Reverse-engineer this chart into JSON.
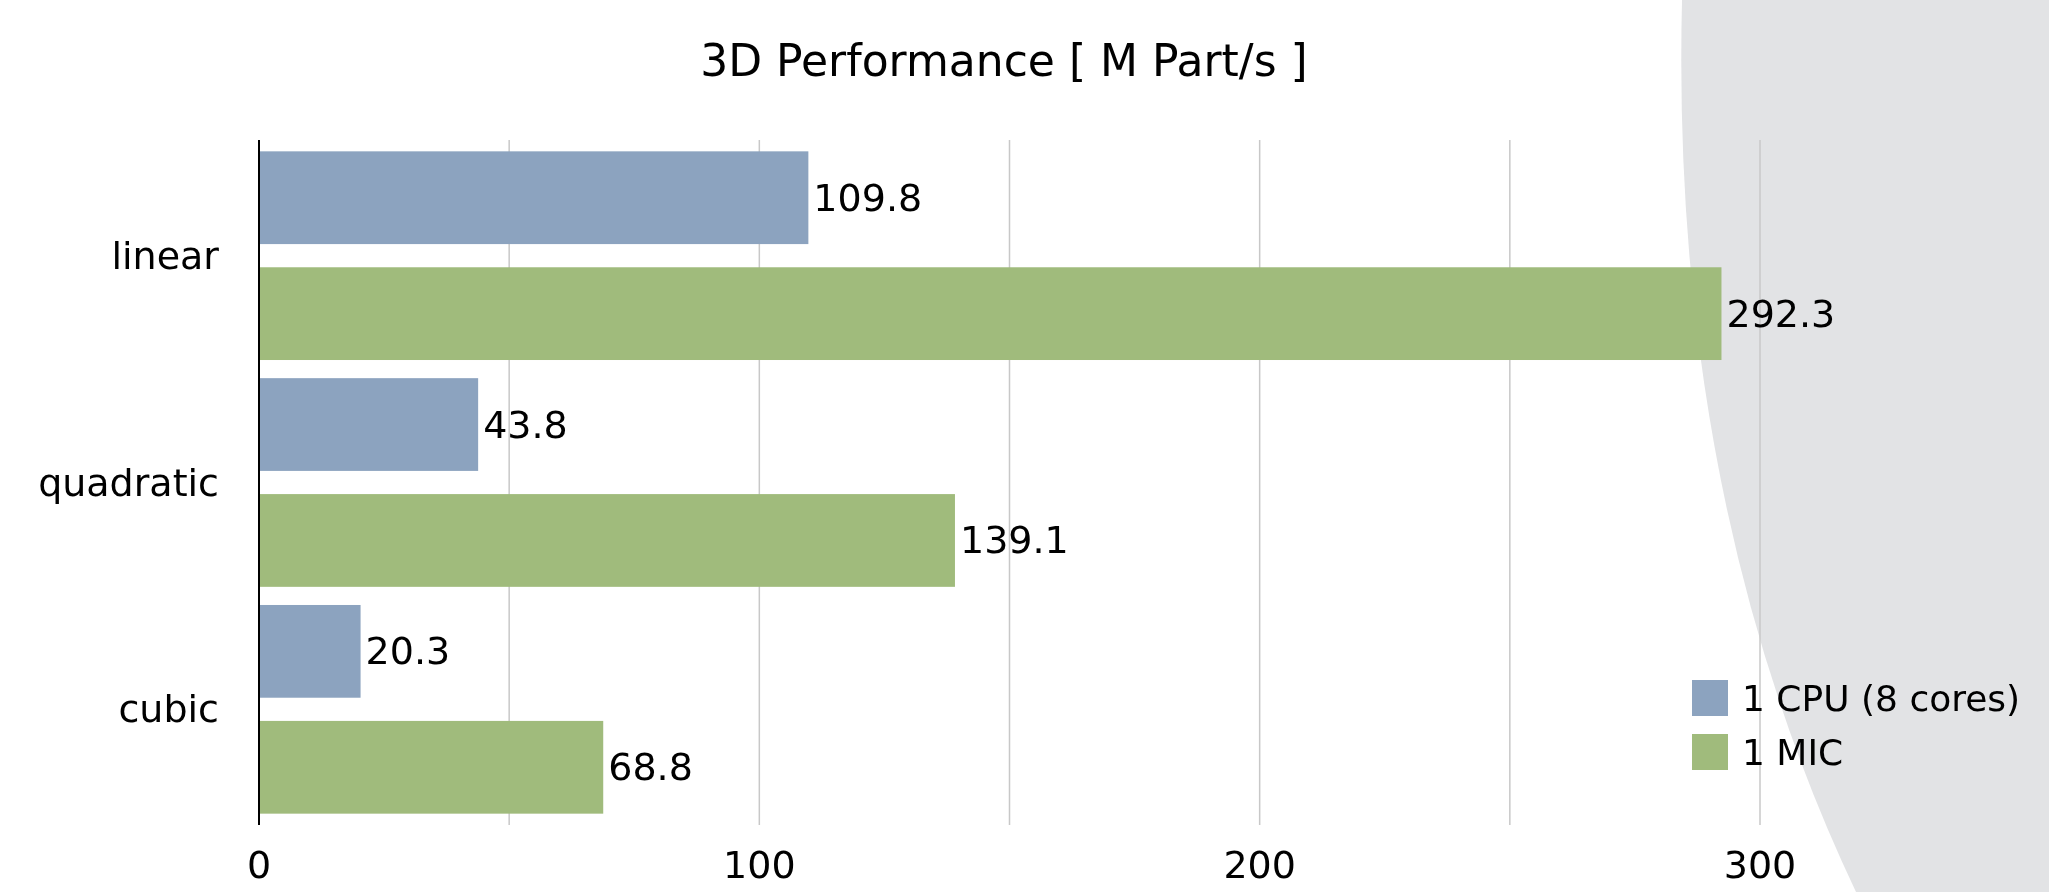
{
  "chart_data": {
    "type": "bar",
    "orientation": "horizontal",
    "title": "3D Performance [ M Part/s ]",
    "categories": [
      "linear",
      "quadratic",
      "cubic"
    ],
    "series": [
      {
        "name": "1 CPU (8 cores)",
        "color": "#8ca3bf",
        "values": [
          109.8,
          43.8,
          20.3
        ]
      },
      {
        "name": "1 MIC",
        "color": "#a0bb7c",
        "values": [
          292.3,
          139.1,
          68.8
        ]
      }
    ],
    "xlim": [
      0,
      300
    ],
    "xticks": [
      0,
      {
        "value": 50,
        "label": null
      },
      100,
      {
        "value": 150,
        "label": null
      },
      200,
      {
        "value": 250,
        "label": null
      },
      300
    ],
    "grid": "x",
    "legend": "bottom right",
    "data_labels": true
  }
}
